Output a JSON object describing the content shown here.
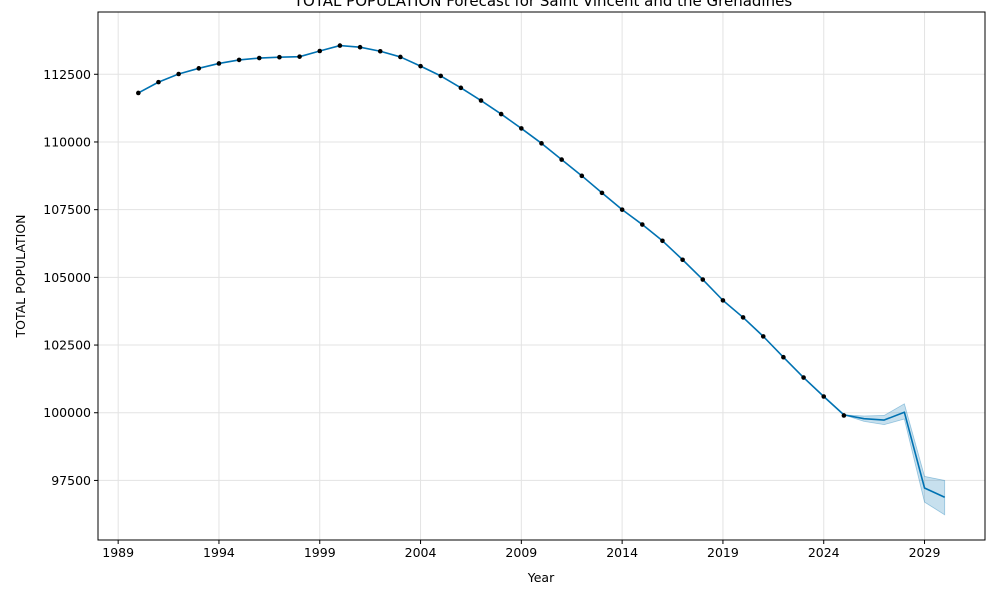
{
  "chart_data": {
    "type": "line",
    "title": "TOTAL POPULATION Forecast for Saint Vincent and the Grenadines",
    "xlabel": "Year",
    "ylabel": "TOTAL POPULATION",
    "xlim": [
      1988,
      2032
    ],
    "ylim": [
      95300,
      114800
    ],
    "x_ticks": [
      1989,
      1994,
      1999,
      2004,
      2009,
      2014,
      2019,
      2024,
      2029
    ],
    "y_ticks": [
      97500,
      100000,
      102500,
      105000,
      107500,
      110000,
      112500
    ],
    "grid": true,
    "colors": {
      "line": "#0072b2",
      "band": "#0072b2",
      "points": "#000000"
    },
    "series": [
      {
        "name": "observed",
        "style": "points",
        "x": [
          1990,
          1991,
          1992,
          1993,
          1994,
          1995,
          1996,
          1997,
          1998,
          1999,
          2000,
          2001,
          2002,
          2003,
          2004,
          2005,
          2006,
          2007,
          2008,
          2009,
          2010,
          2011,
          2012,
          2013,
          2014,
          2015,
          2016,
          2017,
          2018,
          2019,
          2020,
          2021,
          2022,
          2023,
          2024,
          2025
        ],
        "values": [
          111810,
          112210,
          112510,
          112720,
          112900,
          113030,
          113100,
          113130,
          113150,
          113360,
          113560,
          113500,
          113350,
          113140,
          112800,
          112440,
          112000,
          111530,
          111030,
          110500,
          109950,
          109350,
          108750,
          108120,
          107500,
          106950,
          106350,
          105650,
          104920,
          104150,
          103520,
          102820,
          102050,
          101300,
          100600,
          99900
        ]
      },
      {
        "name": "forecast",
        "style": "line",
        "x": [
          1990,
          1991,
          1992,
          1993,
          1994,
          1995,
          1996,
          1997,
          1998,
          1999,
          2000,
          2001,
          2002,
          2003,
          2004,
          2005,
          2006,
          2007,
          2008,
          2009,
          2010,
          2011,
          2012,
          2013,
          2014,
          2015,
          2016,
          2017,
          2018,
          2019,
          2020,
          2021,
          2022,
          2023,
          2024,
          2025,
          2026,
          2027,
          2028,
          2029,
          2030
        ],
        "values": [
          111810,
          112210,
          112510,
          112720,
          112900,
          113030,
          113100,
          113130,
          113150,
          113360,
          113560,
          113500,
          113350,
          113140,
          112800,
          112440,
          112000,
          111530,
          111030,
          110500,
          109950,
          109350,
          108750,
          108120,
          107500,
          106950,
          106350,
          105650,
          104920,
          104150,
          103520,
          102820,
          102050,
          101300,
          100600,
          99920,
          99780,
          99730,
          100020,
          97220,
          96880
        ],
        "lower": [
          111810,
          112210,
          112510,
          112720,
          112900,
          113030,
          113100,
          113130,
          113150,
          113360,
          113560,
          113500,
          113350,
          113140,
          112800,
          112440,
          112000,
          111530,
          111030,
          110500,
          109950,
          109350,
          108750,
          108120,
          107500,
          106950,
          106350,
          105650,
          104920,
          104150,
          103520,
          102820,
          102050,
          101300,
          100600,
          99920,
          99680,
          99560,
          99770,
          96700,
          96230
        ],
        "upper": [
          111810,
          112210,
          112510,
          112720,
          112900,
          113030,
          113100,
          113130,
          113150,
          113360,
          113560,
          113500,
          113350,
          113140,
          112800,
          112440,
          112000,
          111530,
          111030,
          110500,
          109950,
          109350,
          108750,
          108120,
          107500,
          106950,
          106350,
          105650,
          104920,
          104150,
          103520,
          102820,
          102050,
          101300,
          100600,
          99920,
          99880,
          99900,
          100330,
          97650,
          97500
        ]
      }
    ]
  }
}
